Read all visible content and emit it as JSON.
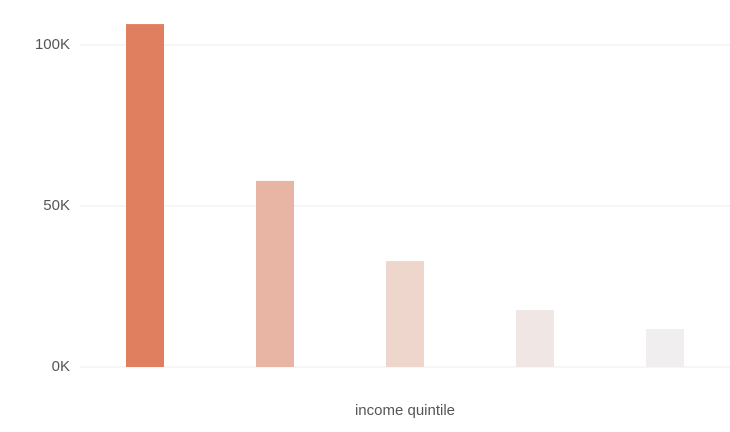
{
  "chart_data": {
    "type": "bar",
    "x_label": "income quintile",
    "categories": [
      null,
      null,
      null,
      null,
      null
    ],
    "values": [
      106500,
      57800,
      32900,
      17700,
      11800
    ],
    "colors": [
      "#e07f5f",
      "#e8b5a4",
      "#efd6cd",
      "#f0e6e3",
      "#f0eeee"
    ],
    "ylim": [
      0,
      110000
    ],
    "yticks": [
      {
        "value": 0,
        "label": "0K"
      },
      {
        "value": 50000,
        "label": "50K"
      },
      {
        "value": 100000,
        "label": "100K"
      }
    ],
    "grid": true
  }
}
